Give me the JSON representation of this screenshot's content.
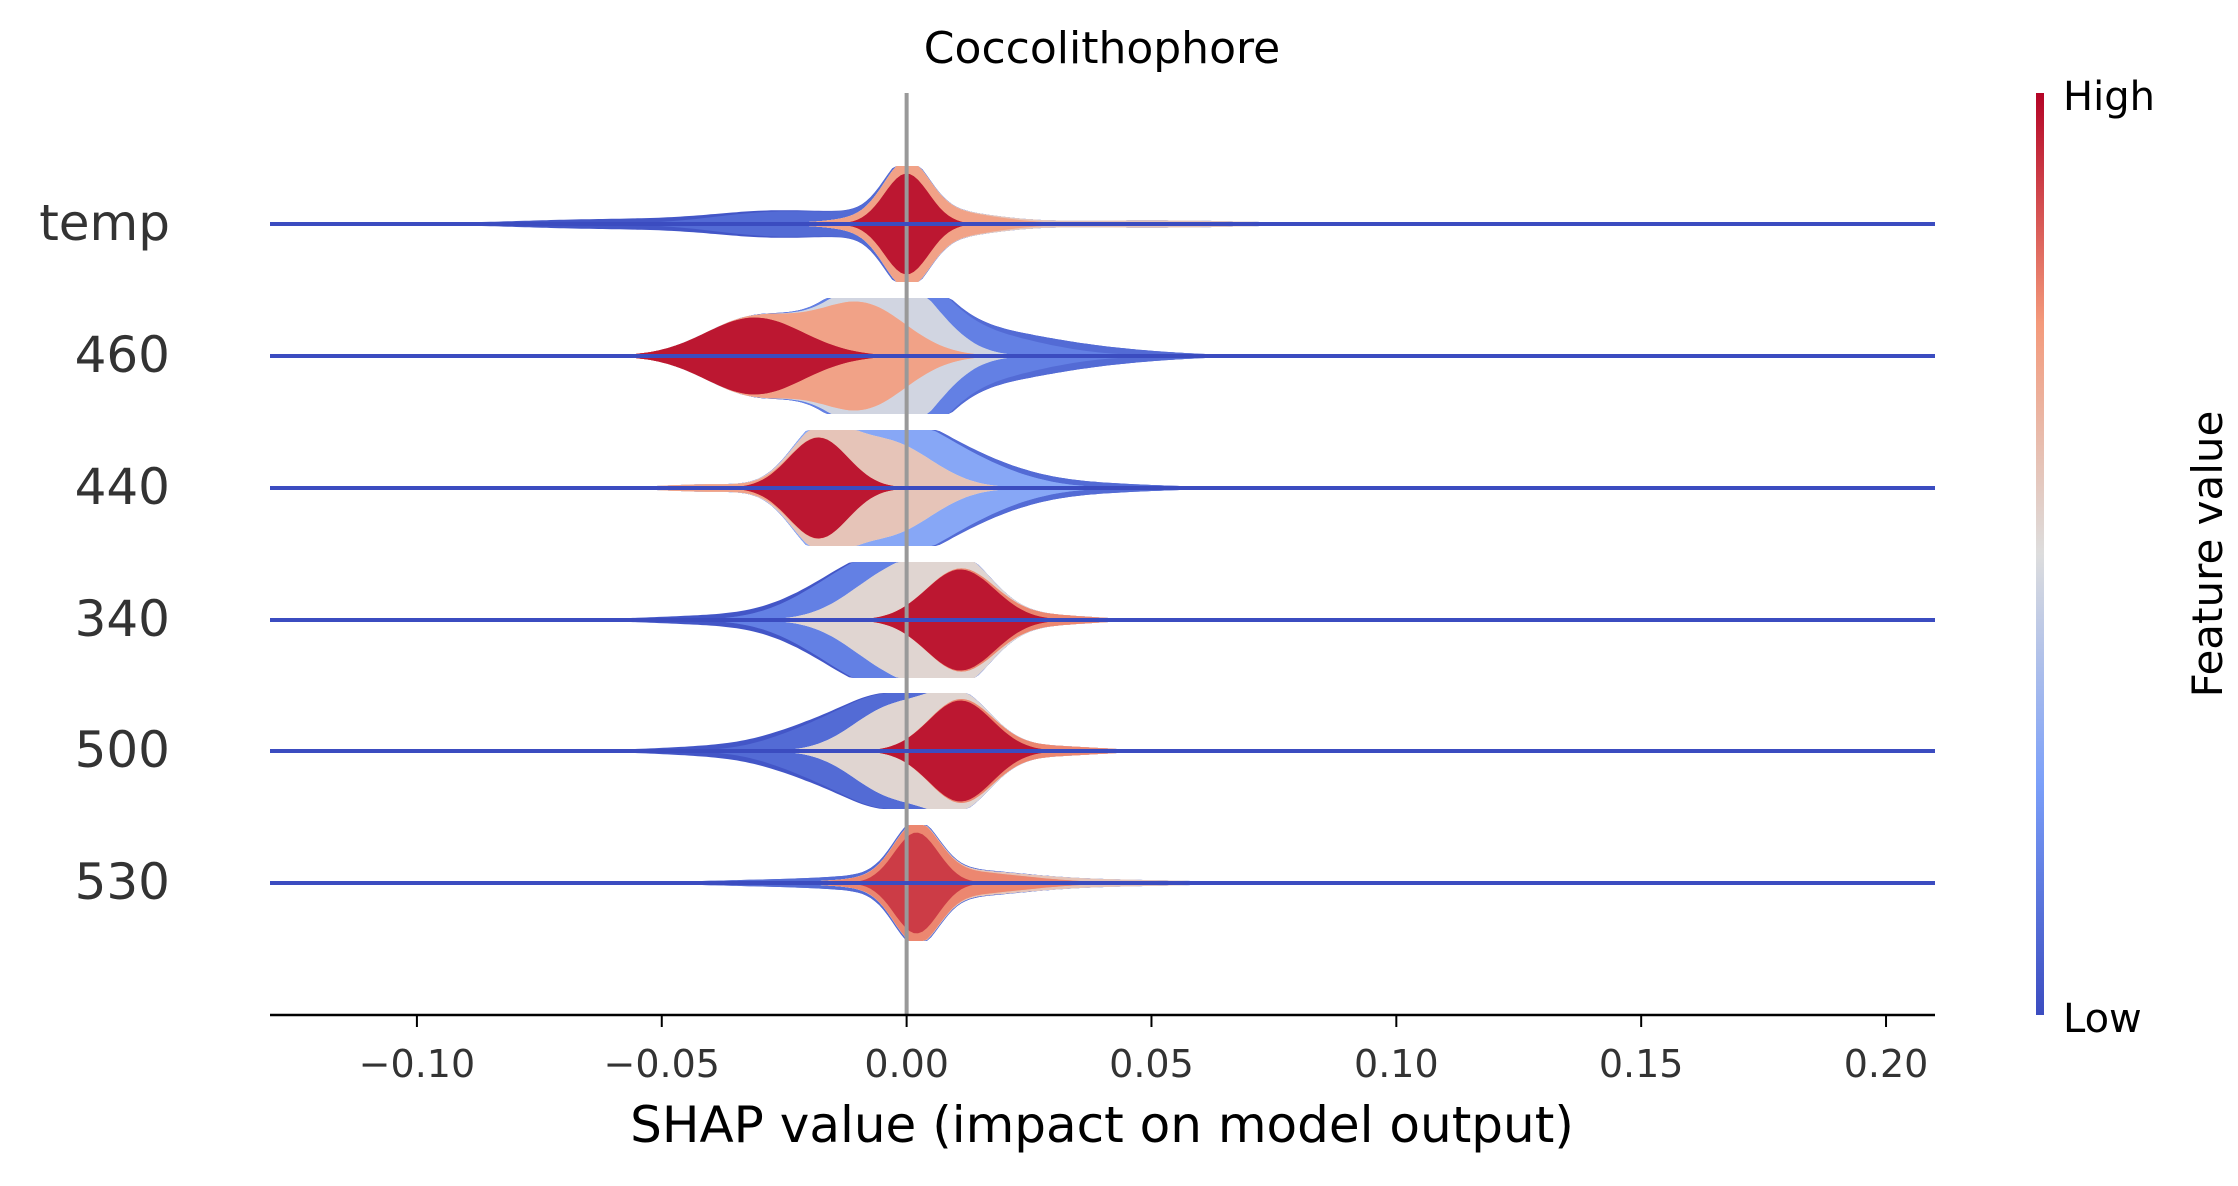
{
  "chart_data": {
    "type": "violin",
    "title": "Coccolithophore",
    "xlabel": "SHAP value (impact on model output)",
    "ylabel": "",
    "xlim": [
      -0.13,
      0.21
    ],
    "xticks": [
      -0.1,
      -0.05,
      0.0,
      0.05,
      0.1,
      0.15,
      0.2
    ],
    "xtick_labels": [
      "−0.10",
      "−0.05",
      "0.00",
      "0.05",
      "0.10",
      "0.15",
      "0.20"
    ],
    "zero_line": 0.0,
    "colorbar": {
      "label": "Feature value",
      "high_label": "High",
      "low_label": "Low",
      "low_color": "#3b4cc0",
      "mid_color": "#dddddd",
      "high_color": "#b40426"
    },
    "features": [
      {
        "name": "temp",
        "peaks": [
          {
            "c": 0.0,
            "w": 0.0045,
            "a": 0.42,
            "v": 0.95
          },
          {
            "c": 0.004,
            "w": 0.012,
            "a": 0.12,
            "v": 0.72
          },
          {
            "c": -0.026,
            "w": 0.013,
            "a": 0.1,
            "v": 0.08
          },
          {
            "c": -0.06,
            "w": 0.02,
            "a": 0.04,
            "v": 0.05
          },
          {
            "c": 0.05,
            "w": 0.02,
            "a": 0.03,
            "v": 0.6
          }
        ]
      },
      {
        "name": "460",
        "peaks": [
          {
            "c": -0.031,
            "w": 0.01,
            "a": 0.32,
            "v": 0.95
          },
          {
            "c": -0.009,
            "w": 0.009,
            "a": 0.42,
            "v": 0.7
          },
          {
            "c": 0.0,
            "w": 0.008,
            "a": 0.4,
            "v": 0.45
          },
          {
            "c": 0.012,
            "w": 0.014,
            "a": 0.2,
            "v": 0.18
          },
          {
            "c": 0.035,
            "w": 0.016,
            "a": 0.06,
            "v": 0.08
          }
        ]
      },
      {
        "name": "440",
        "peaks": [
          {
            "c": -0.018,
            "w": 0.006,
            "a": 0.55,
            "v": 0.95
          },
          {
            "c": -0.004,
            "w": 0.009,
            "a": 0.5,
            "v": 0.6
          },
          {
            "c": 0.008,
            "w": 0.012,
            "a": 0.35,
            "v": 0.25
          },
          {
            "c": 0.03,
            "w": 0.018,
            "a": 0.06,
            "v": 0.08
          },
          {
            "c": -0.04,
            "w": 0.01,
            "a": 0.04,
            "v": 0.7
          }
        ]
      },
      {
        "name": "340",
        "peaks": [
          {
            "c": 0.011,
            "w": 0.007,
            "a": 0.52,
            "v": 0.95
          },
          {
            "c": -0.002,
            "w": 0.009,
            "a": 0.5,
            "v": 0.55
          },
          {
            "c": -0.014,
            "w": 0.01,
            "a": 0.3,
            "v": 0.15
          },
          {
            "c": -0.035,
            "w": 0.016,
            "a": 0.05,
            "v": 0.06
          },
          {
            "c": 0.028,
            "w": 0.01,
            "a": 0.05,
            "v": 0.8
          }
        ]
      },
      {
        "name": "500",
        "peaks": [
          {
            "c": 0.011,
            "w": 0.0065,
            "a": 0.5,
            "v": 0.95
          },
          {
            "c": -0.003,
            "w": 0.008,
            "a": 0.42,
            "v": 0.5
          },
          {
            "c": -0.016,
            "w": 0.01,
            "a": 0.25,
            "v": 0.12
          },
          {
            "c": -0.035,
            "w": 0.015,
            "a": 0.05,
            "v": 0.06
          },
          {
            "c": 0.028,
            "w": 0.011,
            "a": 0.05,
            "v": 0.8
          }
        ]
      },
      {
        "name": "530",
        "peaks": [
          {
            "c": 0.002,
            "w": 0.0045,
            "a": 0.42,
            "v": 0.92
          },
          {
            "c": 0.009,
            "w": 0.014,
            "a": 0.1,
            "v": 0.75
          },
          {
            "c": -0.02,
            "w": 0.02,
            "a": 0.03,
            "v": 0.1
          },
          {
            "c": 0.04,
            "w": 0.02,
            "a": 0.025,
            "v": 0.6
          }
        ]
      }
    ]
  }
}
